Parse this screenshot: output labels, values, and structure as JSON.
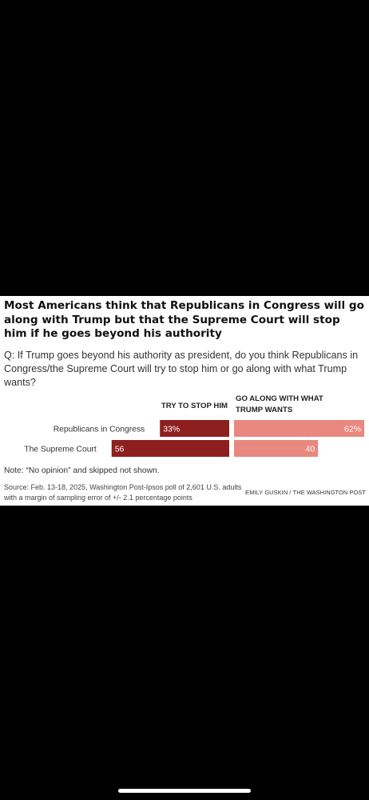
{
  "title": "Most Americans think that Republicans in Congress will go along with Trump but that the Supreme Court will stop him if he goes beyond his authority",
  "question": "Q: If Trump goes beyond his authority as president, do you think Republicans in Congress/the Supreme Court will try to stop him or go along with what Trump wants?",
  "note": "Note: “No opinion” and skipped not shown.",
  "source": "Source: Feb. 13-18, 2025, Washington Post-Ipsos poll of 2,601 U.S. adults with a margin of sampling error of +/- 2.1 percentage points",
  "credit": "EMILY GUSKIN / THE WASHINGTON POST",
  "chart_data": {
    "type": "bar",
    "categories": [
      "Republicans in Congress",
      "The Supreme Court"
    ],
    "series": [
      {
        "name": "TRY TO STOP HIM",
        "values": [
          33,
          56
        ],
        "labels": [
          "33%",
          "56"
        ],
        "color": "#8e1f1f"
      },
      {
        "name": "GO ALONG WITH WHAT TRUMP WANTS",
        "values": [
          62,
          40
        ],
        "labels": [
          "62%",
          "40"
        ],
        "color": "#e8887e"
      }
    ]
  }
}
